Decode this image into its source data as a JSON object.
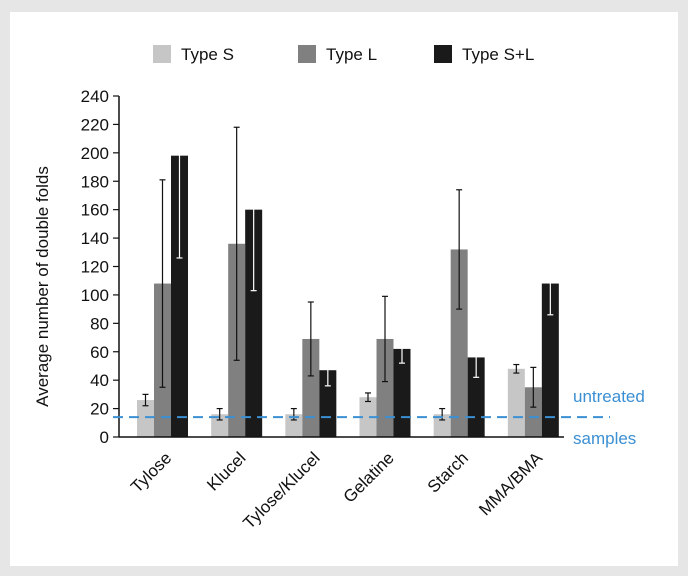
{
  "chart_data": {
    "type": "bar",
    "title": "",
    "xlabel": "",
    "ylabel": "Average number of double folds",
    "ylim": [
      0,
      240
    ],
    "yticks": [
      0,
      20,
      40,
      60,
      80,
      100,
      120,
      140,
      160,
      180,
      200,
      220,
      240
    ],
    "categories": [
      "Tylose",
      "Klucel",
      "Tylose/Klucel",
      "Gelatine",
      "Starch",
      "MMA/BMA"
    ],
    "series": [
      {
        "name": "Type S",
        "color": "#c6c6c6",
        "values": [
          26,
          16,
          16,
          28,
          16,
          48
        ],
        "errors": [
          4,
          4,
          4,
          3,
          4,
          3
        ]
      },
      {
        "name": "Type L",
        "color": "#808080",
        "values": [
          108,
          136,
          69,
          69,
          132,
          35
        ],
        "errors": [
          73,
          82,
          26,
          30,
          42,
          14
        ]
      },
      {
        "name": "Type S+L",
        "color": "#1a1a1a",
        "values": [
          198,
          160,
          47,
          62,
          56,
          108
        ],
        "errors": [
          72,
          57,
          11,
          10,
          14,
          22
        ]
      }
    ],
    "reference_line": {
      "value": 14,
      "label_top": "untreated",
      "label_bottom": "samples",
      "color": "#3b8fd3"
    },
    "legend_position": "top",
    "grid": false
  }
}
